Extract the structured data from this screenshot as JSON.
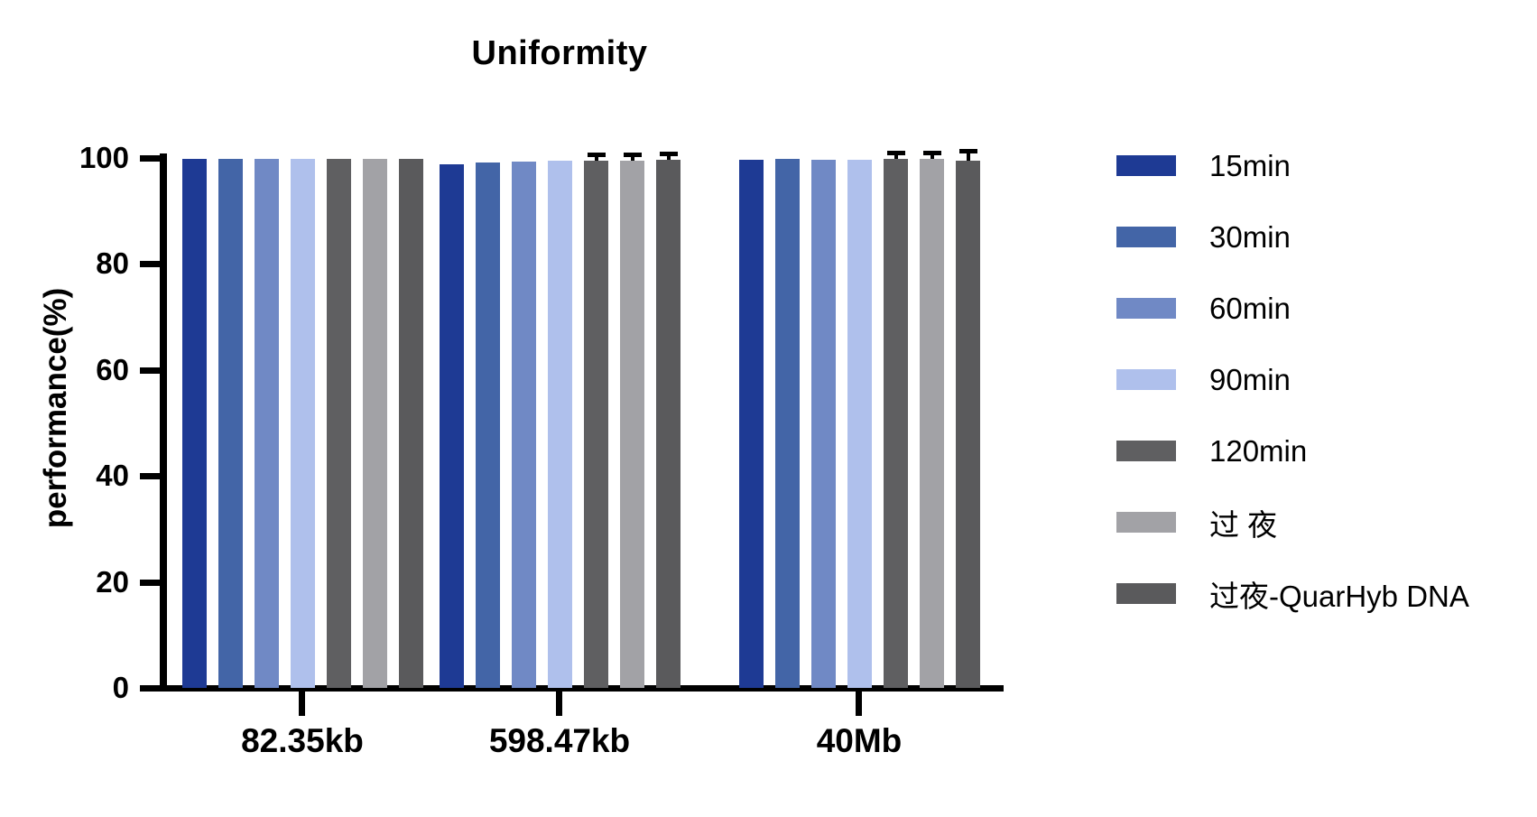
{
  "title": "Uniformity",
  "chart_data": {
    "type": "bar",
    "title": "Uniformity",
    "xlabel": "",
    "ylabel": "performance(%)",
    "ylim": [
      0,
      100
    ],
    "yticks": [
      0,
      20,
      40,
      60,
      80,
      100
    ],
    "grid": false,
    "legend_position": "right",
    "categories": [
      "82.35kb",
      "598.47kb",
      "40Mb"
    ],
    "series": [
      {
        "name": "15min",
        "color": "#1E3A94",
        "values": [
          99.8,
          98.8,
          99.6
        ],
        "errors": [
          0,
          0,
          0
        ]
      },
      {
        "name": "30min",
        "color": "#4365A7",
        "values": [
          99.9,
          99.2,
          99.9
        ],
        "errors": [
          0,
          0,
          0
        ]
      },
      {
        "name": "60min",
        "color": "#7089C5",
        "values": [
          99.9,
          99.3,
          99.7
        ],
        "errors": [
          0,
          0,
          0
        ]
      },
      {
        "name": "90min",
        "color": "#AFC0EC",
        "values": [
          99.9,
          99.5,
          99.7
        ],
        "errors": [
          0,
          0,
          0
        ]
      },
      {
        "name": "120min",
        "color": "#5F5F61",
        "values": [
          99.9,
          99.5,
          99.8
        ],
        "errors": [
          0,
          0.8,
          0.8
        ]
      },
      {
        "name": "过 夜",
        "color": "#A2A2A6",
        "values": [
          99.9,
          99.5,
          99.8
        ],
        "errors": [
          0,
          0.8,
          0.8
        ]
      },
      {
        "name": "过夜-QuarHyb DNA",
        "color": "#5A5A5C",
        "values": [
          99.9,
          99.7,
          99.5
        ],
        "errors": [
          0,
          0.8,
          1.5
        ]
      }
    ]
  }
}
